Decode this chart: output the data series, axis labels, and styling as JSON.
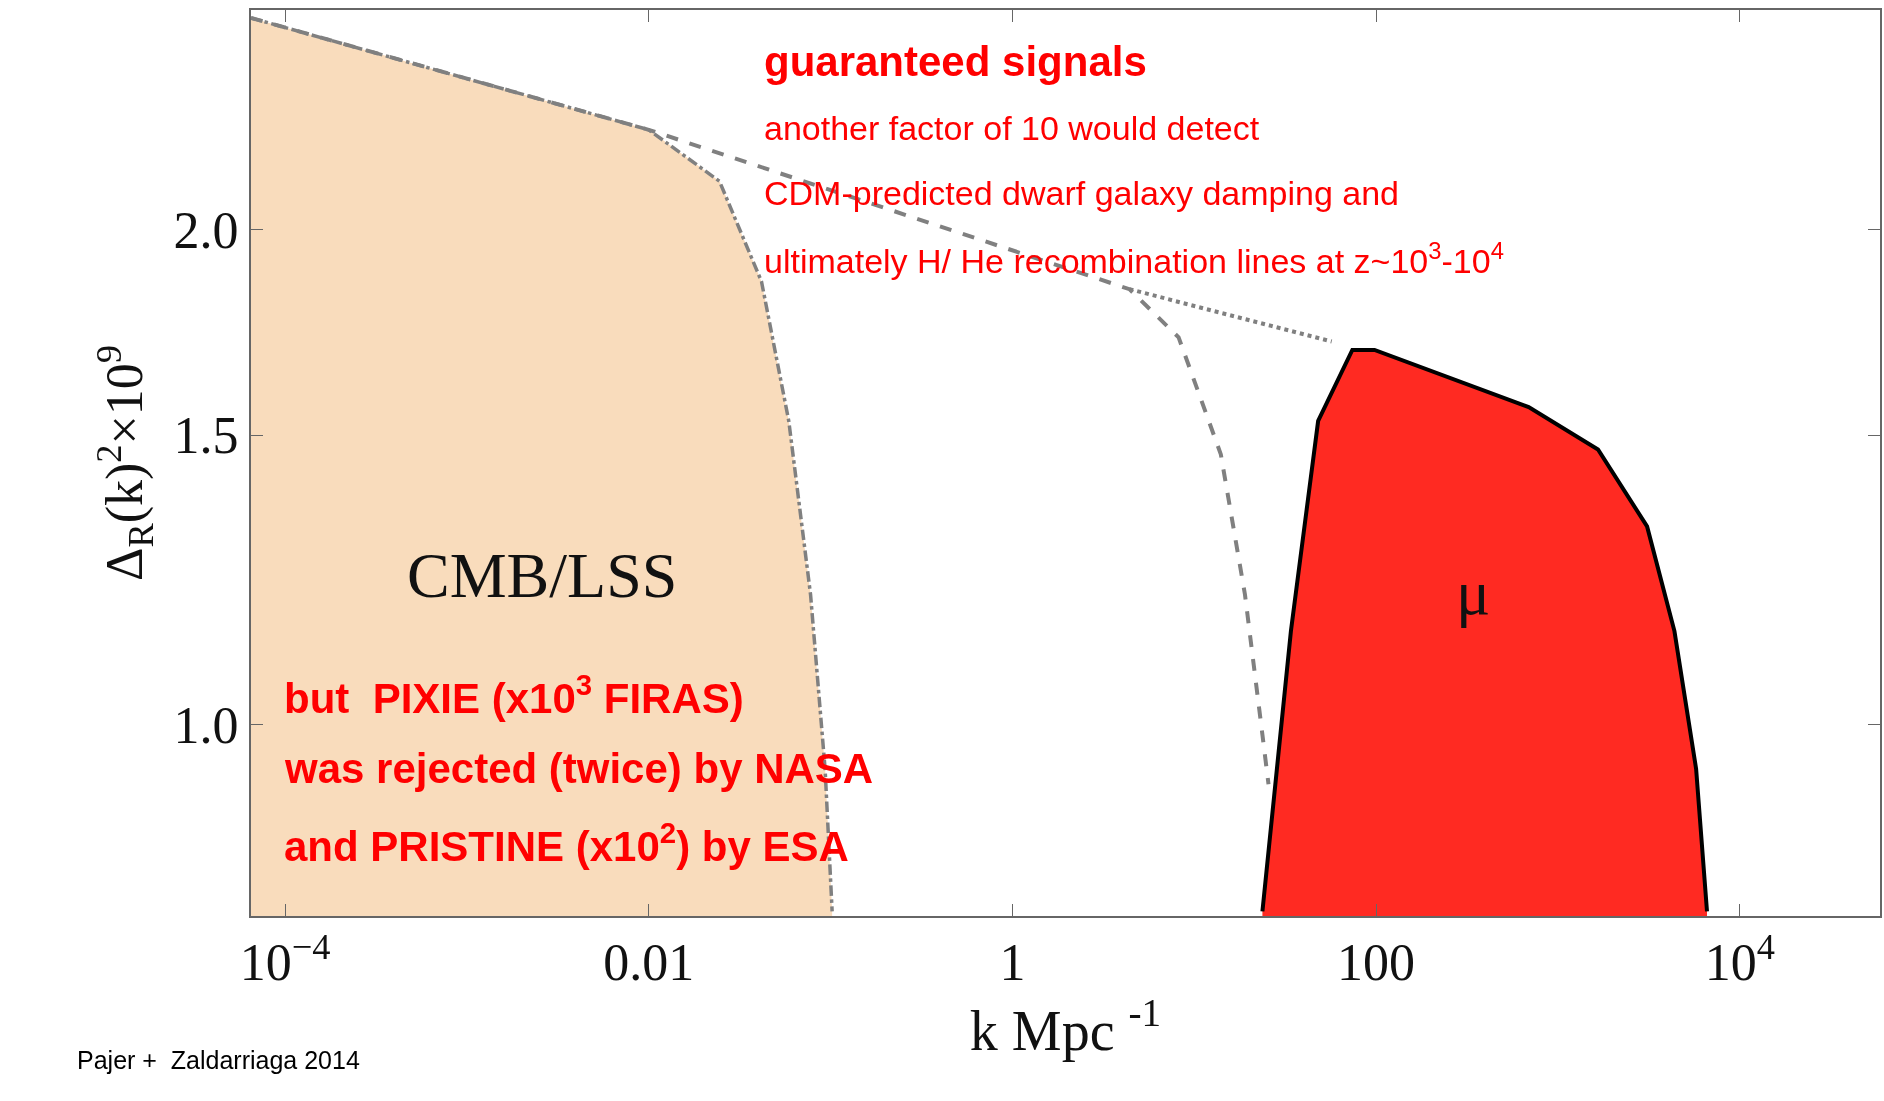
{
  "chart_data": {
    "type": "line",
    "xlabel": "k Mpc $^{-1}$",
    "ylabel": "Δ$_{R}$(k)$^{2}$×10$^{9}$",
    "log": "xy",
    "xlim": [
      6.5e-05,
      59000
    ],
    "ylim": [
      0.765,
      2.72
    ],
    "xticks": [
      {
        "value": 0.0001,
        "label": "10$^{−4}$"
      },
      0.01,
      1,
      100,
      {
        "value": 10000,
        "label": "10$^{4}$"
      }
    ],
    "yticks": [
      {
        "value": 1,
        "label": "1.0"
      },
      {
        "value": 1.5,
        "label": "1.5"
      },
      {
        "value": 2,
        "label": "2.0"
      }
    ],
    "series": [
      {
        "type": "area",
        "color": "#f9dcbc",
        "line_style": "dashdot",
        "x": [
          6.5e-05,
          0.01,
          0.0245,
          0.0417,
          0.0589,
          0.0776,
          0.0933,
          0.102
        ],
        "values": [
          2.69,
          2.3,
          2.14,
          1.86,
          1.53,
          1.2,
          0.94,
          0.77
        ]
      },
      {
        "type": "area",
        "color": "#ff2a22",
        "line_style": "solid",
        "x": [
          23.7,
          34,
          48,
          74,
          98,
          690,
          1660,
          3090,
          4370,
          5750,
          6600
        ],
        "values": [
          0.77,
          1.14,
          1.53,
          1.69,
          1.69,
          1.56,
          1.47,
          1.32,
          1.14,
          0.94,
          0.77
        ]
      },
      {
        "color": "#808080",
        "line_style": "dashed",
        "x": [
          6.5e-05,
          0.01,
          4.4,
          8.2,
          14,
          19,
          23.7,
          25.6
        ],
        "values": [
          2.69,
          2.3,
          1.84,
          1.72,
          1.46,
          1.2,
          0.986,
          0.92
        ]
      },
      {
        "color": "#808080",
        "line_style": "dotted",
        "x": [
          4.4,
          57
        ],
        "values": [
          1.84,
          1.71
        ]
      }
    ],
    "annotations": [
      "CMB/LSS",
      "μ",
      "guaranteed signals",
      "another factor of 10 would detect",
      "CDM-predicted dwarf galaxy damping and",
      "ultimately H/ He recombination lines at z~10$^{3}$-10$^{4}$",
      "but  PIXIE (x10$^{3}$ FIRAS)",
      "was rejected (twice) by NASA",
      "and PRISTINE (x10$^{2}$) by ESA",
      "Pajer +  Zaldarriaga 2014"
    ]
  }
}
